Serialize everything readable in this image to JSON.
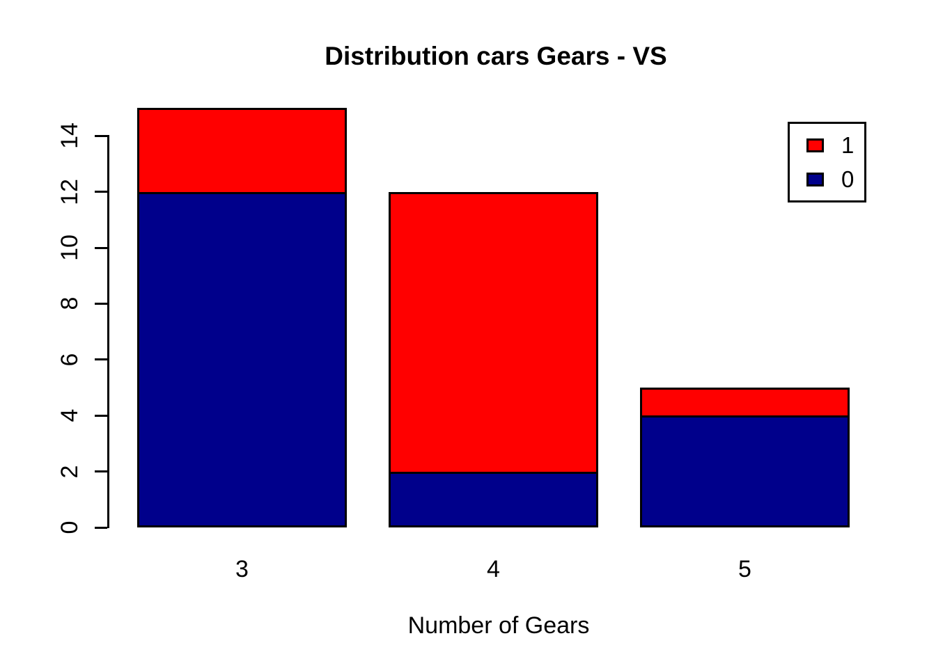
{
  "chart_data": {
    "type": "bar",
    "stacked": true,
    "title": "Distribution cars Gears - VS",
    "xlabel": "Number of Gears",
    "ylabel": "",
    "categories": [
      "3",
      "4",
      "5"
    ],
    "series": [
      {
        "name": "0",
        "color": "#00008B",
        "values": [
          12,
          2,
          4
        ]
      },
      {
        "name": "1",
        "color": "#FF0000",
        "values": [
          3,
          10,
          1
        ]
      }
    ],
    "totals": [
      15,
      12,
      5
    ],
    "ylim": [
      0,
      15
    ],
    "yticks": [
      0,
      2,
      4,
      6,
      8,
      10,
      12,
      14
    ],
    "grid": "off",
    "axis_color": "#000000",
    "bar_border_color": "#000000",
    "background_color": "#FFFFFF",
    "legend": {
      "position": "topright",
      "entries": [
        {
          "label": "1",
          "color": "#FF0000"
        },
        {
          "label": "0",
          "color": "#00008B"
        }
      ]
    }
  }
}
